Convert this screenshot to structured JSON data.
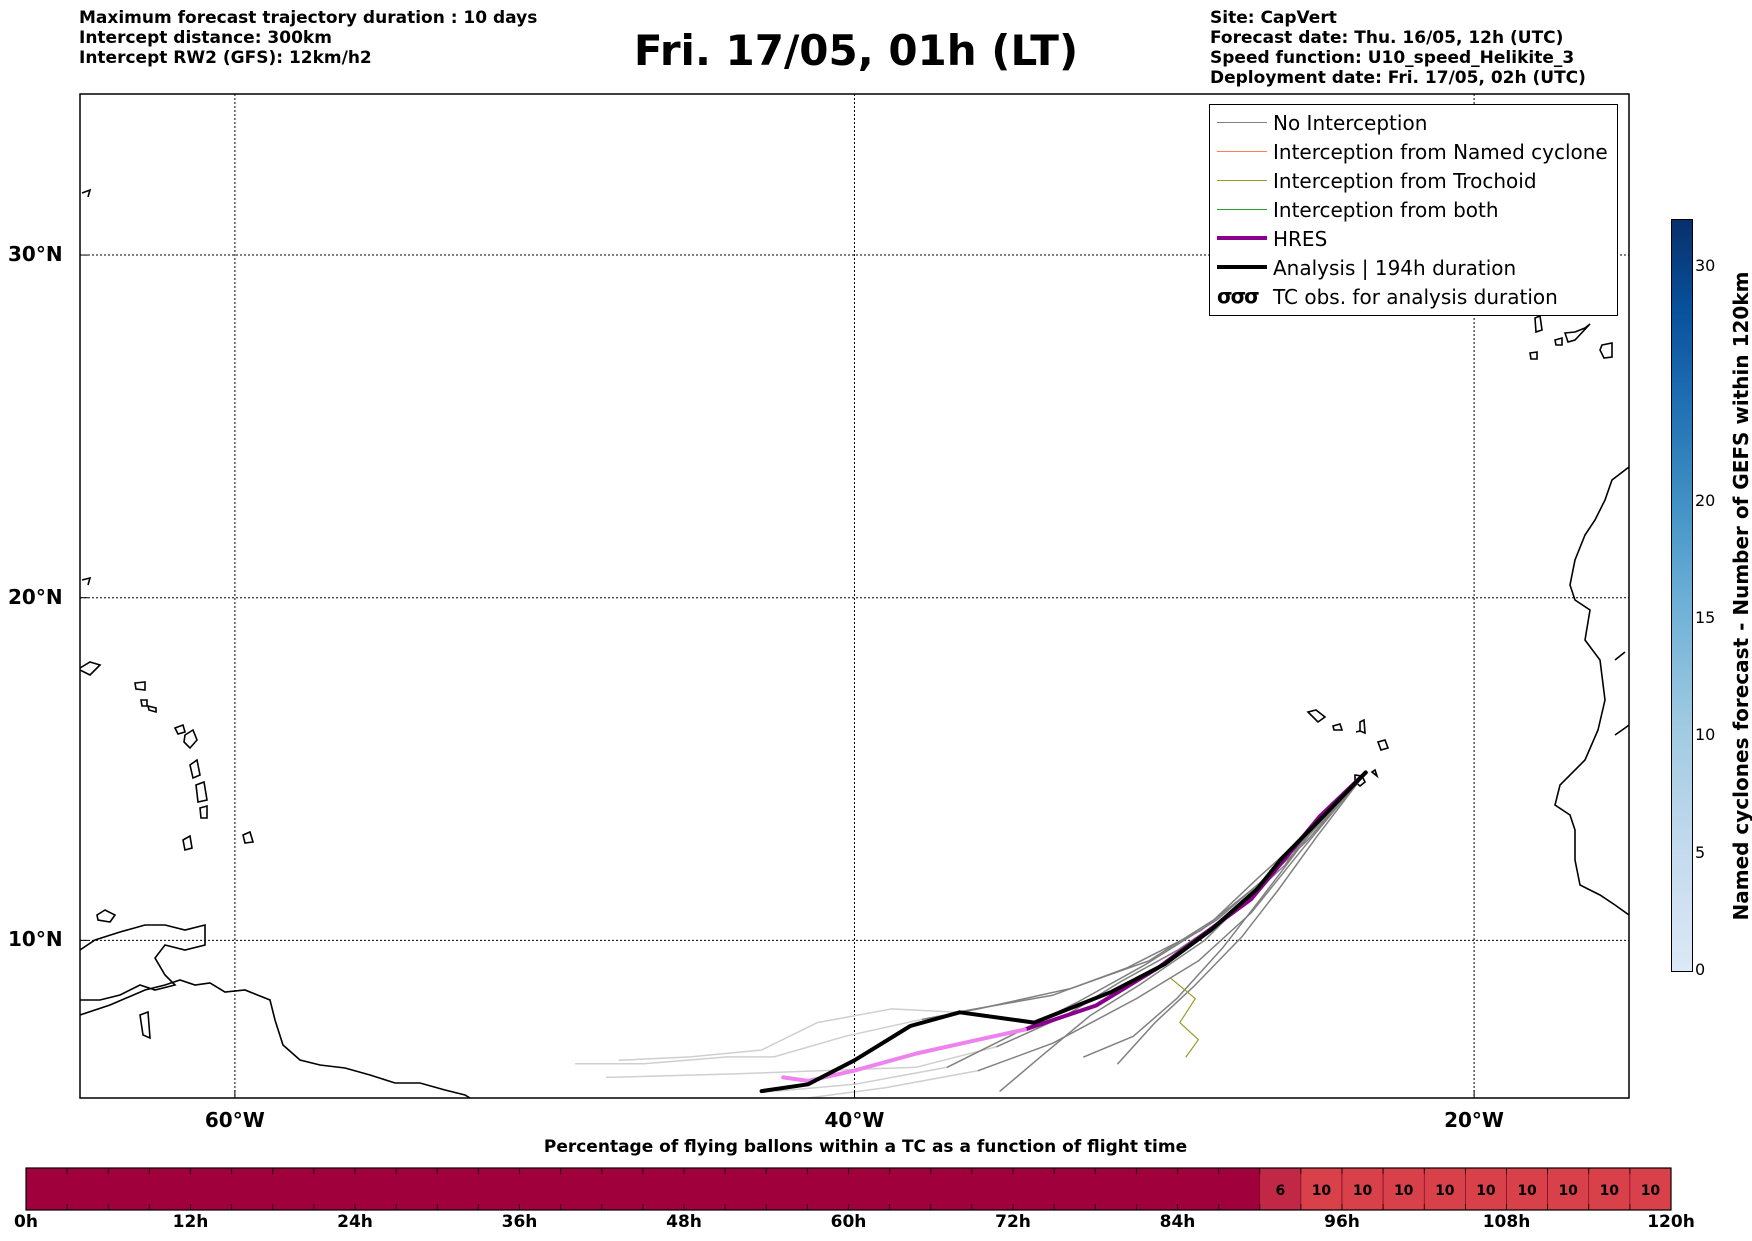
{
  "header": {
    "left_lines": [
      "Maximum forecast trajectory duration : 10 days",
      "Intercept distance: 300km",
      "Intercept RW2 (GFS):  12km/h2"
    ],
    "title": "Fri. 17/05, 01h (LT)",
    "right_lines": [
      "Site: CapVert",
      "Forecast date: Thu. 16/05, 12h (UTC)",
      "Speed function: U10_speed_Helikite_3",
      "Deployment date: Fri. 17/05, 02h (UTC)"
    ]
  },
  "map": {
    "lon_range": [
      -65,
      -15
    ],
    "lat_range": [
      5.4,
      34.7
    ],
    "lon_ticks": [
      {
        "value": -60,
        "label": "60°W"
      },
      {
        "value": -40,
        "label": "40°W"
      },
      {
        "value": -20,
        "label": "20°W"
      }
    ],
    "lat_ticks": [
      {
        "value": 30,
        "label": "30°N"
      },
      {
        "value": 20,
        "label": "20°N"
      },
      {
        "value": 10,
        "label": "10°N"
      }
    ],
    "grid": true,
    "launch_site": {
      "lon": -23.5,
      "lat": 14.9
    },
    "colors": {
      "no_interception": "#808080",
      "named_cyclone": "#ff7f50",
      "trochoid": "#9a9a2a",
      "both": "#2ca02c",
      "hres": "#8b008b",
      "hres_extension": "#ee82ee",
      "analysis": "#000000"
    },
    "analysis_track": [
      [
        -23.5,
        14.9
      ],
      [
        -25,
        13.5
      ],
      [
        -26.2,
        12.4
      ],
      [
        -27,
        11.5
      ],
      [
        -28.5,
        10.3
      ],
      [
        -30,
        9.3
      ],
      [
        -31.7,
        8.5
      ],
      [
        -34.2,
        7.6
      ],
      [
        -36.6,
        7.9
      ],
      [
        -38.2,
        7.5
      ],
      [
        -40,
        6.5
      ],
      [
        -41.5,
        5.8
      ],
      [
        -43,
        5.6
      ]
    ],
    "hres_track": [
      [
        -23.5,
        14.9
      ],
      [
        -25,
        13.6
      ],
      [
        -26,
        12.5
      ],
      [
        -27.2,
        11.2
      ],
      [
        -28.7,
        10.2
      ],
      [
        -30.2,
        9.2
      ],
      [
        -32.2,
        8.1
      ],
      [
        -34.5,
        7.4
      ],
      [
        -36,
        7.1
      ],
      [
        -38,
        6.7
      ],
      [
        -40,
        6.2
      ],
      [
        -41.5,
        5.9
      ],
      [
        -42.3,
        6.0
      ]
    ],
    "gray_tracks": [
      [
        [
          -23.5,
          14.9
        ],
        [
          -25.2,
          13.2
        ],
        [
          -26.5,
          12
        ],
        [
          -28.3,
          10.6
        ],
        [
          -30.6,
          9.3
        ],
        [
          -32.8,
          8.2
        ],
        [
          -35,
          7.2
        ],
        [
          -37,
          6.3
        ]
      ],
      [
        [
          -23.5,
          14.9
        ],
        [
          -24.9,
          13.7
        ],
        [
          -25.9,
          12.7
        ],
        [
          -27,
          11.8
        ],
        [
          -28.4,
          10.6
        ],
        [
          -30.5,
          9.4
        ],
        [
          -33,
          8.6
        ],
        [
          -36,
          8.0
        ],
        [
          -37.8,
          7.7
        ]
      ],
      [
        [
          -23.5,
          14.9
        ],
        [
          -25.4,
          12.9
        ],
        [
          -26.8,
          11.7
        ],
        [
          -28.7,
          10.0
        ],
        [
          -30.8,
          8.7
        ],
        [
          -32.4,
          7.8
        ],
        [
          -34,
          6.6
        ],
        [
          -35.3,
          5.6
        ]
      ],
      [
        [
          -23.5,
          14.9
        ],
        [
          -25.1,
          13.0
        ],
        [
          -26.3,
          11.5
        ],
        [
          -27.5,
          10.1
        ],
        [
          -29,
          8.7
        ],
        [
          -30.3,
          7.6
        ],
        [
          -31.5,
          6.4
        ]
      ],
      [
        [
          -23.5,
          14.9
        ],
        [
          -25.6,
          12.6
        ],
        [
          -27.2,
          10.8
        ],
        [
          -28.9,
          9.4
        ],
        [
          -30.9,
          8.3
        ],
        [
          -33.6,
          7.0
        ],
        [
          -36,
          6.2
        ]
      ],
      [
        [
          -23.5,
          14.9
        ],
        [
          -24.8,
          13.8
        ],
        [
          -26.1,
          12.2
        ],
        [
          -27.8,
          10.8
        ],
        [
          -29.6,
          9.7
        ],
        [
          -31.4,
          8.8
        ],
        [
          -33.2,
          7.8
        ],
        [
          -35.4,
          6.9
        ]
      ],
      [
        [
          -23.5,
          14.9
        ],
        [
          -25.3,
          13.1
        ],
        [
          -26.9,
          11.2
        ],
        [
          -28.1,
          9.8
        ],
        [
          -29.6,
          8.3
        ],
        [
          -31,
          7.2
        ],
        [
          -32.6,
          6.6
        ]
      ],
      [
        [
          -23.5,
          14.9
        ],
        [
          -25.0,
          13.4
        ],
        [
          -26.6,
          11.9
        ],
        [
          -28.8,
          10.3
        ],
        [
          -31.2,
          9.2
        ],
        [
          -33.6,
          8.4
        ],
        [
          -36.7,
          7.9
        ]
      ]
    ],
    "light_tracks": [
      [
        [
          -37,
          6.3
        ],
        [
          -40,
          5.8
        ],
        [
          -42.5,
          5.6
        ]
      ],
      [
        [
          -37.8,
          7.7
        ],
        [
          -40.3,
          7.2
        ],
        [
          -42.6,
          6.6
        ],
        [
          -44.1,
          6.6
        ],
        [
          -46.8,
          6.4
        ],
        [
          -49,
          6.4
        ]
      ],
      [
        [
          -35.4,
          6.9
        ],
        [
          -38,
          6.3
        ],
        [
          -41,
          6.2
        ],
        [
          -44,
          6.1
        ],
        [
          -48,
          6.0
        ]
      ],
      [
        [
          -36,
          6.2
        ],
        [
          -39,
          5.7
        ],
        [
          -41.5,
          5.4
        ]
      ],
      [
        [
          -36.7,
          7.9
        ],
        [
          -38.8,
          8.0
        ],
        [
          -41.2,
          7.6
        ],
        [
          -43,
          6.8
        ],
        [
          -45.3,
          6.6
        ],
        [
          -47.6,
          6.5
        ]
      ]
    ]
  },
  "legend": {
    "items": [
      {
        "label": "No Interception",
        "style": "thin",
        "color": "#808080"
      },
      {
        "label": "Interception from Named cyclone",
        "style": "thin",
        "color": "#ff7f50"
      },
      {
        "label": "Interception from Trochoid",
        "style": "thin",
        "color": "#9a9a2a"
      },
      {
        "label": "Interception from both",
        "style": "thin",
        "color": "#2ca02c"
      },
      {
        "label": "HRES",
        "style": "thick",
        "color": "#8b008b"
      },
      {
        "label": "Analysis | 194h duration",
        "style": "thick",
        "color": "#000000"
      },
      {
        "label": "TC obs. for analysis duration",
        "style": "symbol",
        "symbol": "σσσ"
      }
    ]
  },
  "colorbar": {
    "label": "Named cyclones forecast - Number of GEFS within 120km",
    "range": [
      0,
      32
    ],
    "ticks": [
      "0",
      "5",
      "10",
      "15",
      "20",
      "30"
    ],
    "tick_values": [
      0,
      5,
      10,
      15,
      20,
      30
    ]
  },
  "timeline": {
    "title": "Percentage of flying ballons within a TC as a function of flight time",
    "ticks": [
      "0h",
      "12h",
      "24h",
      "36h",
      "48h",
      "60h",
      "72h",
      "84h",
      "96h",
      "108h",
      "120h"
    ],
    "range_hours": [
      0,
      120
    ],
    "cell_hours": 3,
    "base_color": "#a0003c",
    "cell6_color": "#c02845",
    "cell10_color": "#d8404a",
    "labeled_cells": [
      {
        "start_h": 90,
        "value": "6"
      },
      {
        "start_h": 93,
        "value": "10"
      },
      {
        "start_h": 96,
        "value": "10"
      },
      {
        "start_h": 99,
        "value": "10"
      },
      {
        "start_h": 102,
        "value": "10"
      },
      {
        "start_h": 105,
        "value": "10"
      },
      {
        "start_h": 108,
        "value": "10"
      },
      {
        "start_h": 111,
        "value": "10"
      },
      {
        "start_h": 114,
        "value": "10"
      },
      {
        "start_h": 117,
        "value": "10"
      }
    ]
  }
}
